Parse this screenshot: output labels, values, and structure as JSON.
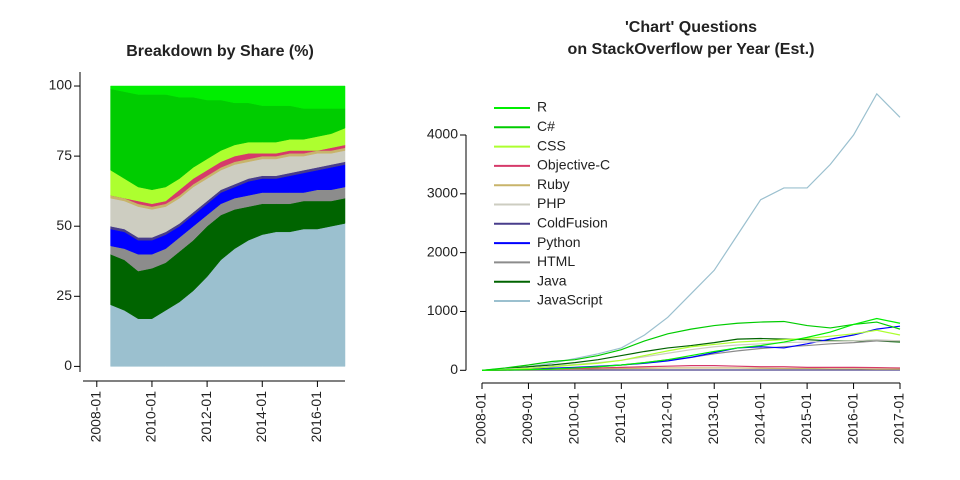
{
  "chart_data": [
    {
      "type": "stacked_area",
      "title": "Breakdown by Share (%)",
      "x": [
        "2008-07",
        "2009-01",
        "2009-07",
        "2010-01",
        "2010-07",
        "2011-01",
        "2011-07",
        "2012-01",
        "2012-07",
        "2013-01",
        "2013-07",
        "2014-01",
        "2014-07",
        "2015-01",
        "2015-07",
        "2016-01",
        "2016-07",
        "2017-01"
      ],
      "series": [
        {
          "color": "#9bc0cf",
          "values": [
            22,
            20,
            17,
            17,
            20,
            23,
            27,
            32,
            38,
            42,
            45,
            47,
            48,
            48,
            49,
            49,
            50,
            51
          ]
        },
        {
          "color": "#006400",
          "values": [
            18,
            18,
            17,
            18,
            17,
            18,
            18,
            18,
            16,
            14,
            12,
            11,
            10,
            10,
            10,
            10,
            9,
            9
          ]
        },
        {
          "color": "#8c8c8c",
          "values": [
            3,
            4,
            6,
            5,
            5,
            5,
            5,
            4,
            4,
            4,
            4,
            4,
            4,
            4,
            3,
            4,
            4,
            4
          ]
        },
        {
          "color": "#0000ff",
          "values": [
            6,
            6,
            5,
            5,
            5,
            4,
            4,
            4,
            4,
            4,
            5,
            5,
            5,
            6,
            7,
            7,
            8,
            8
          ]
        },
        {
          "color": "#483d8b",
          "values": [
            1,
            1,
            1,
            1,
            1,
            1,
            1,
            1,
            1,
            1,
            1,
            1,
            1,
            1,
            1,
            1,
            1,
            1
          ]
        },
        {
          "color": "#cdcdc1",
          "values": [
            10,
            10,
            11,
            10,
            9,
            9,
            9,
            8,
            7,
            7,
            6,
            6,
            6,
            6,
            5,
            5,
            4,
            4
          ]
        },
        {
          "color": "#c8b46a",
          "values": [
            1,
            1,
            1,
            1,
            1,
            1,
            1,
            1,
            1,
            1,
            1,
            1,
            1,
            1,
            1,
            1,
            1,
            1
          ]
        },
        {
          "color": "#d63a6a",
          "values": [
            0,
            0,
            1,
            1,
            1,
            2,
            2,
            2,
            2,
            2,
            2,
            1,
            1,
            1,
            1,
            0,
            1,
            1
          ]
        },
        {
          "color": "#adff2f",
          "values": [
            9,
            7,
            5,
            5,
            5,
            4,
            4,
            4,
            4,
            4,
            4,
            4,
            4,
            4,
            4,
            5,
            5,
            6
          ]
        },
        {
          "color": "#00cc00",
          "values": [
            29,
            31,
            33,
            34,
            33,
            29,
            25,
            21,
            18,
            15,
            14,
            13,
            13,
            12,
            11,
            10,
            9,
            7
          ]
        },
        {
          "color": "#00ee00",
          "values": [
            1,
            2,
            3,
            3,
            3,
            4,
            4,
            5,
            5,
            6,
            6,
            7,
            7,
            7,
            8,
            8,
            8,
            8
          ]
        }
      ],
      "xlim": [
        "2007-07",
        "2017-01"
      ],
      "xticks": [
        "2008-01",
        "2010-01",
        "2012-01",
        "2014-01",
        "2016-01"
      ],
      "ylim": [
        -2,
        105
      ],
      "yticks": [
        0,
        25,
        50,
        75,
        100
      ]
    },
    {
      "type": "line",
      "title": [
        "'Chart' Questions",
        "on StackOverflow per Year (Est.)"
      ],
      "x": [
        "2008-01",
        "2008-07",
        "2009-01",
        "2009-07",
        "2010-01",
        "2010-07",
        "2011-01",
        "2011-07",
        "2012-01",
        "2012-07",
        "2013-01",
        "2013-07",
        "2014-01",
        "2014-07",
        "2015-01",
        "2015-07",
        "2016-01",
        "2016-07",
        "2017-01"
      ],
      "series": [
        {
          "name": "R",
          "color": "#00ee00",
          "values": [
            0,
            5,
            10,
            20,
            40,
            60,
            90,
            130,
            180,
            250,
            320,
            380,
            420,
            480,
            560,
            650,
            780,
            880,
            800
          ]
        },
        {
          "name": "C#",
          "color": "#00cc00",
          "values": [
            0,
            40,
            90,
            150,
            180,
            250,
            350,
            500,
            620,
            700,
            760,
            800,
            820,
            830,
            760,
            720,
            780,
            820,
            700
          ]
        },
        {
          "name": "CSS",
          "color": "#adff2f",
          "values": [
            0,
            10,
            30,
            60,
            90,
            120,
            170,
            250,
            330,
            400,
            440,
            480,
            500,
            520,
            540,
            580,
            620,
            680,
            600
          ]
        },
        {
          "name": "Objective-C",
          "color": "#d63a6a",
          "values": [
            0,
            5,
            10,
            20,
            30,
            40,
            50,
            60,
            70,
            80,
            80,
            70,
            60,
            60,
            50,
            50,
            50,
            45,
            40
          ]
        },
        {
          "name": "Ruby",
          "color": "#c8b46a",
          "values": [
            0,
            5,
            10,
            15,
            20,
            25,
            30,
            35,
            40,
            40,
            40,
            40,
            35,
            30,
            30,
            25,
            25,
            20,
            20
          ]
        },
        {
          "name": "PHP",
          "color": "#cdcdc1",
          "values": [
            0,
            20,
            40,
            70,
            100,
            130,
            170,
            230,
            290,
            350,
            400,
            430,
            450,
            470,
            480,
            490,
            500,
            520,
            500
          ]
        },
        {
          "name": "ColdFusion",
          "color": "#483d8b",
          "values": [
            0,
            2,
            3,
            5,
            5,
            5,
            5,
            5,
            5,
            5,
            5,
            5,
            5,
            5,
            5,
            5,
            5,
            5,
            5
          ]
        },
        {
          "name": "Python",
          "color": "#0000ff",
          "values": [
            0,
            10,
            20,
            35,
            50,
            70,
            90,
            120,
            160,
            220,
            300,
            380,
            400,
            380,
            450,
            530,
            600,
            700,
            750
          ]
        },
        {
          "name": "HTML",
          "color": "#8c8c8c",
          "values": [
            0,
            5,
            10,
            20,
            40,
            60,
            90,
            130,
            180,
            220,
            280,
            330,
            370,
            400,
            420,
            450,
            470,
            500,
            500
          ]
        },
        {
          "name": "Java",
          "color": "#006400",
          "values": [
            0,
            30,
            60,
            90,
            130,
            180,
            250,
            320,
            380,
            420,
            470,
            530,
            540,
            530,
            520,
            500,
            500,
            500,
            480
          ]
        },
        {
          "name": "JavaScript",
          "color": "#9bc0cf",
          "values": [
            0,
            20,
            60,
            120,
            200,
            280,
            380,
            600,
            900,
            1300,
            1700,
            2300,
            2900,
            3100,
            3100,
            3500,
            4000,
            4700,
            4300
          ]
        }
      ],
      "xlim": [
        "2008-01",
        "2017-01"
      ],
      "xticks": [
        "2008-01",
        "2009-01",
        "2010-01",
        "2011-01",
        "2012-01",
        "2013-01",
        "2014-01",
        "2015-01",
        "2016-01",
        "2017-01"
      ],
      "ylim": [
        -80,
        4850
      ],
      "yticks": [
        0,
        1000,
        2000,
        3000,
        4000
      ],
      "legend": "top-left"
    }
  ]
}
